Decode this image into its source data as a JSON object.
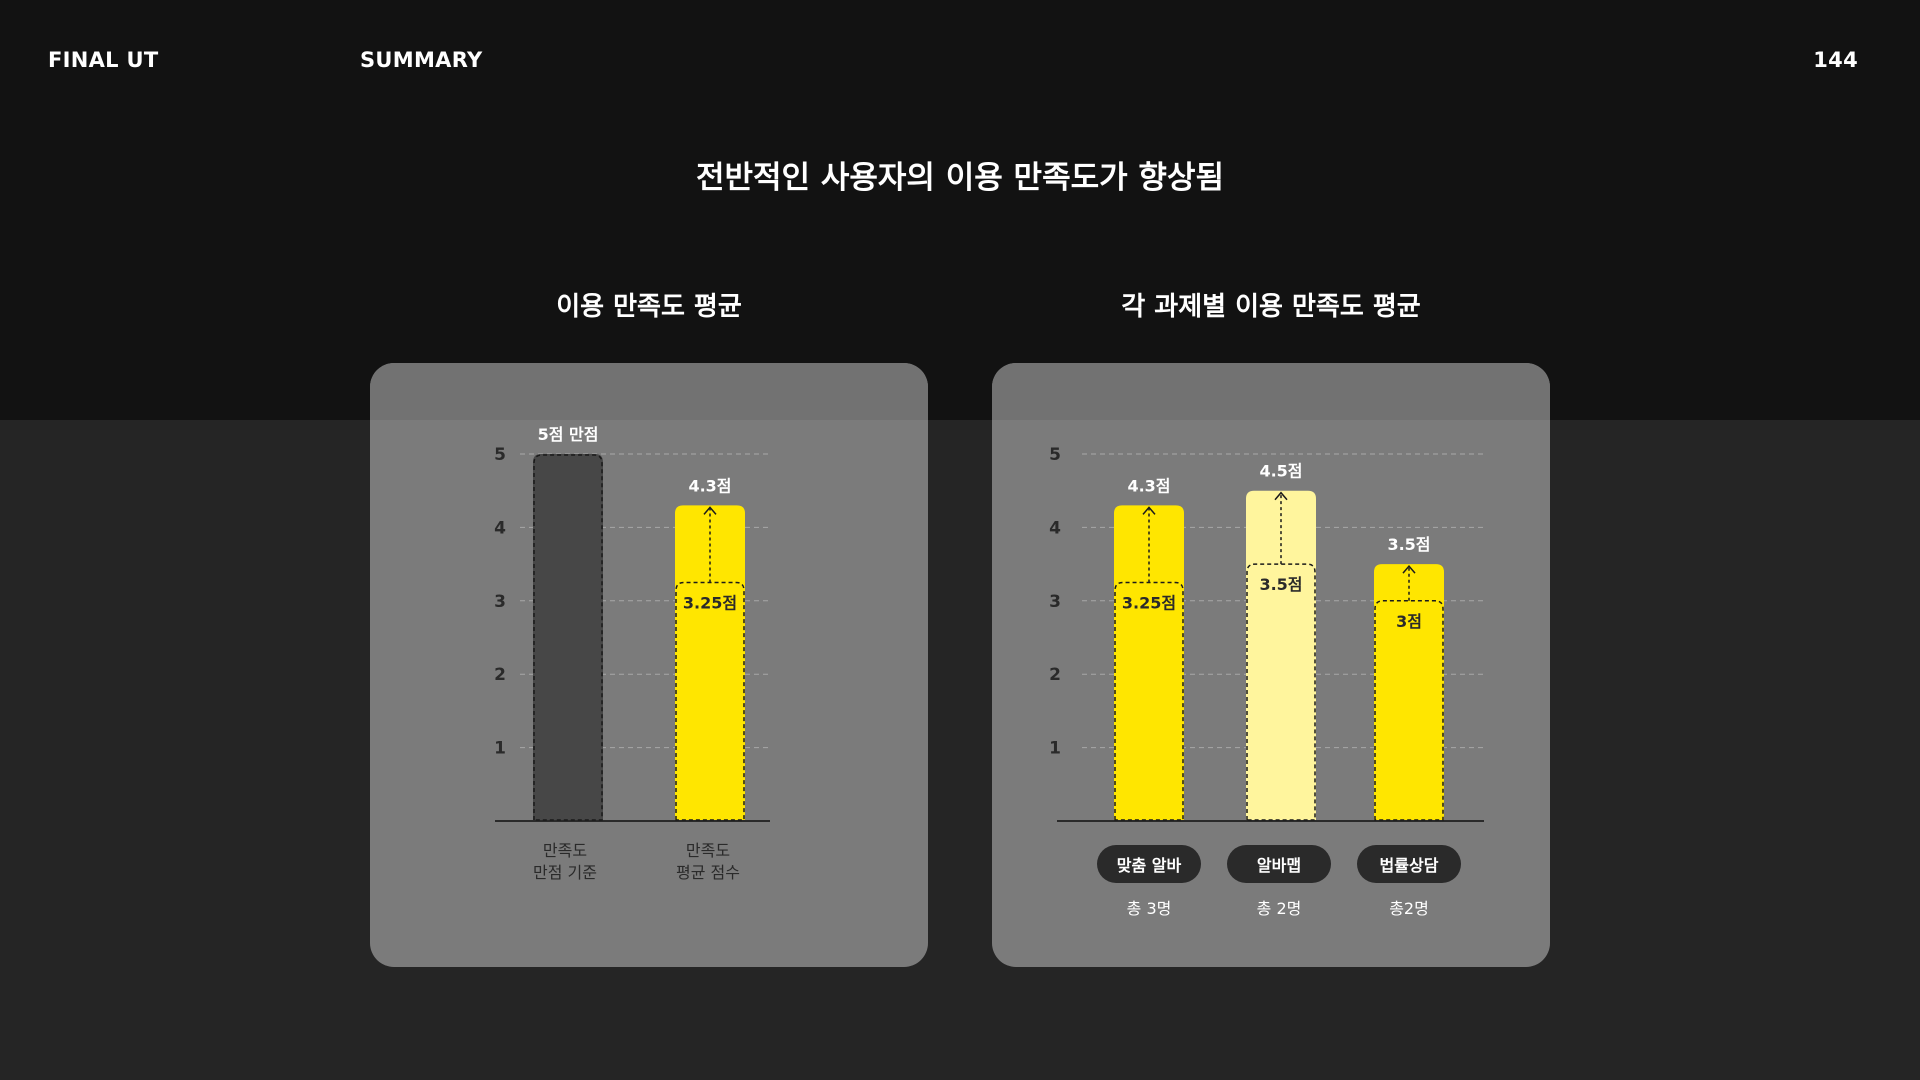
{
  "header": {
    "left": "FINAL UT",
    "section": "SUMMARY",
    "page_number": "144"
  },
  "title": "전반적인 사용자의 이용 만족도가 향상됨",
  "colors": {
    "highlight": "#FFE600",
    "highlight_light": "#FFF59D",
    "baseline_bar": "#474747",
    "card": "#7B7B7B"
  },
  "chart_data": [
    {
      "type": "bar",
      "title": "이용 만족도 평균",
      "yticks": [
        "1",
        "2",
        "3",
        "4",
        "5"
      ],
      "ylim": [
        0,
        5
      ],
      "grid": true,
      "categories": [
        {
          "line1": "만족도",
          "line2": "만점 기준"
        },
        {
          "line1": "만족도",
          "line2": "평균 점수"
        }
      ],
      "bars": [
        {
          "value": 5,
          "label": "5점 만점",
          "style": "dark"
        },
        {
          "value": 4.3,
          "label": "4.3점",
          "previous": 3.25,
          "previous_label": "3.25점",
          "style": "yellow"
        }
      ]
    },
    {
      "type": "bar",
      "title": "각 과제별 이용 만족도 평균",
      "yticks": [
        "1",
        "2",
        "3",
        "4",
        "5"
      ],
      "ylim": [
        0,
        5
      ],
      "grid": true,
      "categories": [
        {
          "name": "맞춤 알바",
          "count": "총 3명"
        },
        {
          "name": "알바맵",
          "count": "총 2명"
        },
        {
          "name": "법률상담",
          "count": "총2명"
        }
      ],
      "bars": [
        {
          "value": 4.3,
          "label": "4.3점",
          "previous": 3.25,
          "previous_label": "3.25점",
          "style": "yellow"
        },
        {
          "value": 4.5,
          "label": "4.5점",
          "previous": 3.5,
          "previous_label": "3.5점",
          "style": "light"
        },
        {
          "value": 3.5,
          "label": "3.5점",
          "previous": 3,
          "previous_label": "3점",
          "style": "yellow"
        }
      ]
    }
  ]
}
